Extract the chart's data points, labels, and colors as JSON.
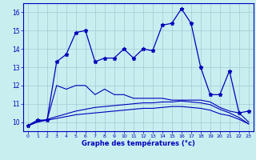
{
  "xlabel": "Graphe des températures (°c)",
  "bg_color": "#c8eef0",
  "grid_color": "#a8d0d8",
  "line_color": "#0000bb",
  "x": [
    0,
    1,
    2,
    3,
    4,
    5,
    6,
    7,
    8,
    9,
    10,
    11,
    12,
    13,
    14,
    15,
    16,
    17,
    18,
    19,
    20,
    21,
    22,
    23
  ],
  "line1": [
    9.8,
    10.1,
    10.1,
    13.3,
    13.7,
    14.9,
    15.0,
    13.3,
    13.5,
    13.5,
    14.0,
    13.5,
    14.0,
    13.9,
    15.3,
    15.4,
    16.2,
    15.4,
    13.0,
    11.5,
    11.5,
    12.8,
    10.5,
    10.6
  ],
  "line2": [
    9.8,
    10.1,
    10.1,
    12.0,
    11.8,
    12.0,
    12.0,
    11.5,
    11.8,
    11.5,
    11.5,
    11.3,
    11.3,
    11.3,
    11.3,
    11.2,
    11.2,
    11.2,
    11.2,
    11.1,
    10.8,
    10.6,
    10.5,
    10.0
  ],
  "line3": [
    9.8,
    10.0,
    10.15,
    10.3,
    10.45,
    10.6,
    10.7,
    10.8,
    10.85,
    10.9,
    10.95,
    11.0,
    11.05,
    11.05,
    11.1,
    11.1,
    11.15,
    11.1,
    11.05,
    10.95,
    10.7,
    10.5,
    10.25,
    9.9
  ],
  "line4": [
    9.8,
    10.0,
    10.1,
    10.2,
    10.3,
    10.4,
    10.45,
    10.5,
    10.55,
    10.6,
    10.65,
    10.7,
    10.75,
    10.75,
    10.8,
    10.85,
    10.85,
    10.8,
    10.75,
    10.65,
    10.45,
    10.35,
    10.15,
    9.9
  ],
  "ylim": [
    9.5,
    16.5
  ],
  "yticks": [
    10,
    11,
    12,
    13,
    14,
    15,
    16
  ],
  "xtick_labels": [
    "0",
    "1",
    "2",
    "3",
    "4",
    "5",
    "6",
    "7",
    "8",
    "9",
    "10",
    "11",
    "12",
    "13",
    "14",
    "15",
    "16",
    "17",
    "18",
    "19",
    "20",
    "21",
    "22",
    "23"
  ]
}
